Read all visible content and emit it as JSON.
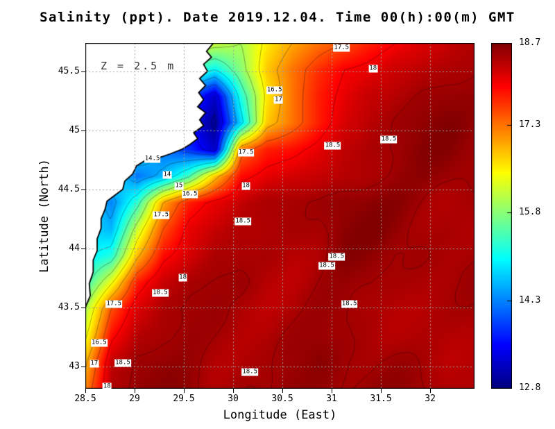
{
  "chart_data": {
    "type": "heatmap",
    "title": "Salinity (ppt). Date 2019.12.04. Time 00(h):00(m) GMT",
    "xlabel": "Longitude (East)",
    "ylabel": "Latitude (North)",
    "annotation": "Z = 2.5 m",
    "units": "ppt",
    "x_range": [
      28.5,
      32.45
    ],
    "y_range": [
      42.81,
      45.74
    ],
    "x_ticks": [
      28.5,
      29,
      29.5,
      30,
      30.5,
      31,
      31.5,
      32
    ],
    "x_tick_labels": [
      "28.5",
      "29",
      "29.5",
      "30",
      "30.5",
      "31",
      "31.5",
      "32"
    ],
    "y_ticks": [
      45.5,
      45,
      44.5,
      44,
      43.5,
      43
    ],
    "y_tick_labels": [
      "45.5",
      "45",
      "44.5",
      "44",
      "43.5",
      "43"
    ],
    "colormap": "jet",
    "colorbar": {
      "min": 12.8,
      "max": 18.7,
      "ticks": [
        18.7,
        17.3,
        15.8,
        14.3,
        12.8
      ],
      "tick_labels": [
        "18.7",
        "17.3",
        "15.8",
        "14.3",
        "12.8"
      ]
    },
    "grid_lines": true,
    "colors": {
      "land": "#ffffff",
      "coast": "#000000",
      "contour": "#000000",
      "grid": "#a0a0a0"
    },
    "grid_lon": [
      28.5,
      28.76,
      29.03,
      29.29,
      29.55,
      29.82,
      30.08,
      30.34,
      30.61,
      30.87,
      31.13,
      31.4,
      31.66,
      31.92,
      32.19,
      32.45
    ],
    "grid_lat": [
      45.74,
      45.51,
      45.29,
      45.06,
      44.84,
      44.61,
      44.39,
      44.16,
      43.94,
      43.71,
      43.48,
      43.26,
      43.03,
      42.81
    ],
    "salinity": [
      [
        16.5,
        16.5,
        16.5,
        16.5,
        16.4,
        16.2,
        16.0,
        16.6,
        17.0,
        17.3,
        17.5,
        17.8,
        18.0,
        18.2,
        18.3,
        18.4
      ],
      [
        16.5,
        16.5,
        16.5,
        16.0,
        15.5,
        15.0,
        15.8,
        16.8,
        17.3,
        17.7,
        18.0,
        18.1,
        18.3,
        18.4,
        18.45,
        18.5
      ],
      [
        16.0,
        16.0,
        16.0,
        15.0,
        14.0,
        13.2,
        15.2,
        16.6,
        17.3,
        17.8,
        18.1,
        18.3,
        18.4,
        18.5,
        18.55,
        18.55
      ],
      [
        16.0,
        16.0,
        15.5,
        14.5,
        13.5,
        12.9,
        14.8,
        16.8,
        17.3,
        17.8,
        18.2,
        18.4,
        18.5,
        18.55,
        18.6,
        18.55
      ],
      [
        16.0,
        15.5,
        15.0,
        14.2,
        13.8,
        13.2,
        17.3,
        17.8,
        17.9,
        18.1,
        18.4,
        18.5,
        18.55,
        18.6,
        18.6,
        18.55
      ],
      [
        15.5,
        15.0,
        14.2,
        14.6,
        15.4,
        16.8,
        17.9,
        18.1,
        18.2,
        18.3,
        18.4,
        18.5,
        18.55,
        18.6,
        18.6,
        18.55
      ],
      [
        15.0,
        14.3,
        15.3,
        17.0,
        17.8,
        18.1,
        18.3,
        18.4,
        18.45,
        18.5,
        18.6,
        18.6,
        18.6,
        18.55,
        18.5,
        18.5
      ],
      [
        14.8,
        14.6,
        16.2,
        17.5,
        18.1,
        18.3,
        18.4,
        18.45,
        18.5,
        18.5,
        18.6,
        18.6,
        18.55,
        18.5,
        18.5,
        18.45
      ],
      [
        14.9,
        15.2,
        16.9,
        17.9,
        18.2,
        18.4,
        18.45,
        18.5,
        18.45,
        18.5,
        18.6,
        18.55,
        18.5,
        18.5,
        18.45,
        18.45
      ],
      [
        15.3,
        16.4,
        17.8,
        18.3,
        18.4,
        18.45,
        18.5,
        18.4,
        18.4,
        18.5,
        18.55,
        18.55,
        18.5,
        18.45,
        18.4,
        18.45
      ],
      [
        16.0,
        17.5,
        18.2,
        18.45,
        18.5,
        18.5,
        18.4,
        18.35,
        18.4,
        18.5,
        18.55,
        18.5,
        18.45,
        18.4,
        18.4,
        18.45
      ],
      [
        16.4,
        17.9,
        18.4,
        18.5,
        18.55,
        18.5,
        18.45,
        18.4,
        18.45,
        18.5,
        18.5,
        18.5,
        18.45,
        18.4,
        18.4,
        18.45
      ],
      [
        16.9,
        18.3,
        18.5,
        18.55,
        18.55,
        18.5,
        18.5,
        18.45,
        18.5,
        18.6,
        18.5,
        18.5,
        18.5,
        18.45,
        18.4,
        18.45
      ],
      [
        17.2,
        18.4,
        18.5,
        18.55,
        18.6,
        18.5,
        18.5,
        18.5,
        18.6,
        18.6,
        18.55,
        18.5,
        18.5,
        18.5,
        18.45,
        18.45
      ]
    ],
    "contour_levels": [
      13,
      13.5,
      14,
      14.5,
      15,
      15.5,
      16,
      16.5,
      17,
      17.5,
      18,
      18.5
    ],
    "coastline": [
      [
        29.8,
        45.74
      ],
      [
        29.73,
        45.67
      ],
      [
        29.78,
        45.62
      ],
      [
        29.7,
        45.56
      ],
      [
        29.74,
        45.5
      ],
      [
        29.66,
        45.44
      ],
      [
        29.72,
        45.38
      ],
      [
        29.65,
        45.32
      ],
      [
        29.7,
        45.26
      ],
      [
        29.64,
        45.2
      ],
      [
        29.72,
        45.15
      ],
      [
        29.66,
        45.09
      ],
      [
        29.7,
        45.04
      ],
      [
        29.6,
        44.98
      ],
      [
        29.64,
        44.93
      ],
      [
        29.56,
        44.88
      ],
      [
        29.48,
        44.84
      ],
      [
        29.36,
        44.8
      ],
      [
        29.22,
        44.76
      ],
      [
        29.1,
        44.74
      ],
      [
        29.02,
        44.7
      ],
      [
        28.98,
        44.63
      ],
      [
        28.9,
        44.57
      ],
      [
        28.88,
        44.5
      ],
      [
        28.8,
        44.45
      ],
      [
        28.72,
        44.4
      ],
      [
        28.7,
        44.33
      ],
      [
        28.66,
        44.25
      ],
      [
        28.66,
        44.17
      ],
      [
        28.62,
        44.08
      ],
      [
        28.62,
        43.98
      ],
      [
        28.58,
        43.9
      ],
      [
        28.58,
        43.8
      ],
      [
        28.54,
        43.7
      ],
      [
        28.55,
        43.6
      ],
      [
        28.5,
        43.5
      ]
    ],
    "contour_labels": [
      {
        "text": "17.5",
        "lon": 31.1,
        "lat": 45.7
      },
      {
        "text": "18",
        "lon": 31.42,
        "lat": 45.52
      },
      {
        "text": "16.5",
        "lon": 30.42,
        "lat": 45.34
      },
      {
        "text": "17",
        "lon": 30.46,
        "lat": 45.26
      },
      {
        "text": "17.5",
        "lon": 30.13,
        "lat": 44.81
      },
      {
        "text": "18.5",
        "lon": 31.01,
        "lat": 44.87
      },
      {
        "text": "18.5",
        "lon": 31.58,
        "lat": 44.92
      },
      {
        "text": "14.5",
        "lon": 29.18,
        "lat": 44.76
      },
      {
        "text": "14",
        "lon": 29.33,
        "lat": 44.62
      },
      {
        "text": "15",
        "lon": 29.45,
        "lat": 44.53
      },
      {
        "text": "16.5",
        "lon": 29.56,
        "lat": 44.46
      },
      {
        "text": "18",
        "lon": 30.13,
        "lat": 44.53
      },
      {
        "text": "17.5",
        "lon": 29.27,
        "lat": 44.28
      },
      {
        "text": "18.5",
        "lon": 30.1,
        "lat": 44.23
      },
      {
        "text": "18.5",
        "lon": 31.05,
        "lat": 43.93
      },
      {
        "text": "18.5",
        "lon": 30.95,
        "lat": 43.85
      },
      {
        "text": "18",
        "lon": 29.49,
        "lat": 43.75
      },
      {
        "text": "18.5",
        "lon": 29.26,
        "lat": 43.62
      },
      {
        "text": "17.5",
        "lon": 28.79,
        "lat": 43.53
      },
      {
        "text": "18.5",
        "lon": 31.18,
        "lat": 43.53
      },
      {
        "text": "16.5",
        "lon": 28.64,
        "lat": 43.2
      },
      {
        "text": "17",
        "lon": 28.59,
        "lat": 43.02
      },
      {
        "text": "18.5",
        "lon": 28.88,
        "lat": 43.03
      },
      {
        "text": "18.5",
        "lon": 30.17,
        "lat": 42.95
      },
      {
        "text": "18",
        "lon": 28.72,
        "lat": 42.83
      }
    ]
  }
}
